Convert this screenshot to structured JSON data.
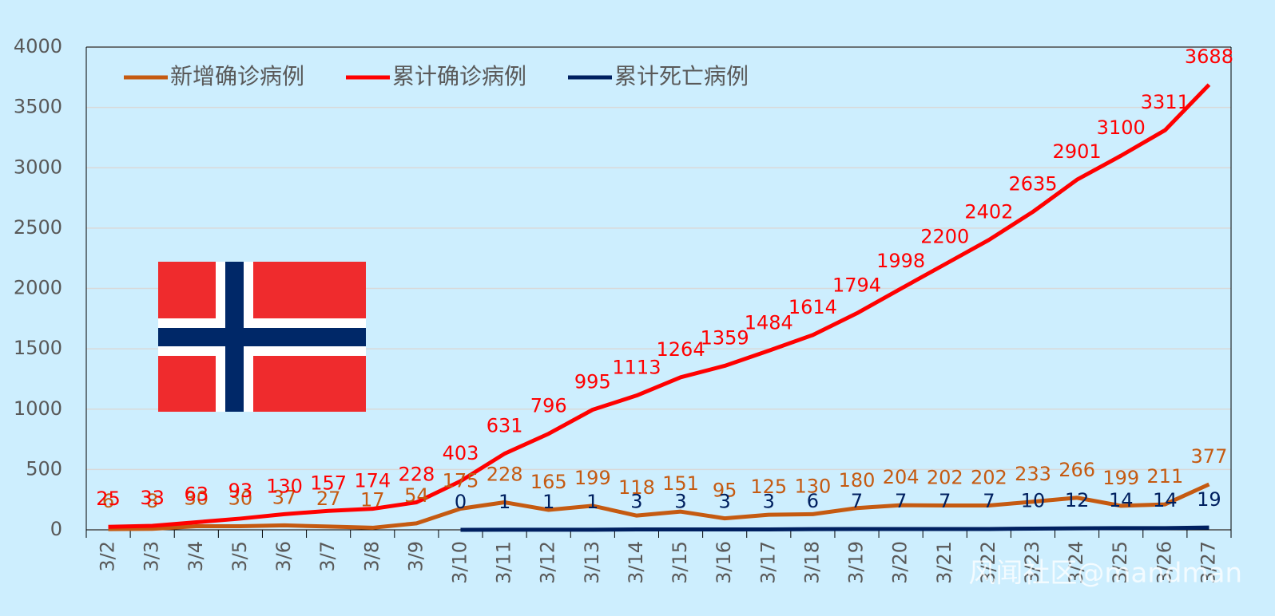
{
  "chart_data": {
    "type": "line",
    "categories": [
      "3/2",
      "3/3",
      "3/4",
      "3/5",
      "3/6",
      "3/7",
      "3/8",
      "3/9",
      "3/10",
      "3/11",
      "3/12",
      "3/13",
      "3/14",
      "3/15",
      "3/16",
      "3/17",
      "3/18",
      "3/19",
      "3/20",
      "3/21",
      "3/22",
      "3/23",
      "3/24",
      "3/25",
      "3/26",
      "3/27"
    ],
    "series": [
      {
        "name": "新增确诊病例",
        "color": "#c55a11",
        "values": [
          6,
          8,
          30,
          30,
          37,
          27,
          17,
          54,
          175,
          228,
          165,
          199,
          118,
          151,
          95,
          125,
          130,
          180,
          204,
          202,
          202,
          233,
          266,
          199,
          211,
          377
        ]
      },
      {
        "name": "累计确诊病例",
        "color": "#ff0000",
        "values": [
          25,
          33,
          63,
          93,
          130,
          157,
          174,
          228,
          403,
          631,
          796,
          995,
          1113,
          1264,
          1359,
          1484,
          1614,
          1794,
          1998,
          2200,
          2402,
          2635,
          2901,
          3100,
          3311,
          3688
        ]
      },
      {
        "name": "累计死亡病例",
        "color": "#002060",
        "values": [
          null,
          null,
          null,
          null,
          null,
          null,
          null,
          null,
          0,
          1,
          1,
          1,
          3,
          3,
          3,
          3,
          6,
          7,
          7,
          7,
          7,
          10,
          12,
          14,
          14,
          19
        ]
      }
    ],
    "ylim": [
      0,
      4000
    ],
    "yticks": [
      0,
      500,
      1000,
      1500,
      2000,
      2500,
      3000,
      3500,
      4000
    ],
    "grid": true,
    "legend": "top-left",
    "watermark": "风闻社区@mandman"
  }
}
